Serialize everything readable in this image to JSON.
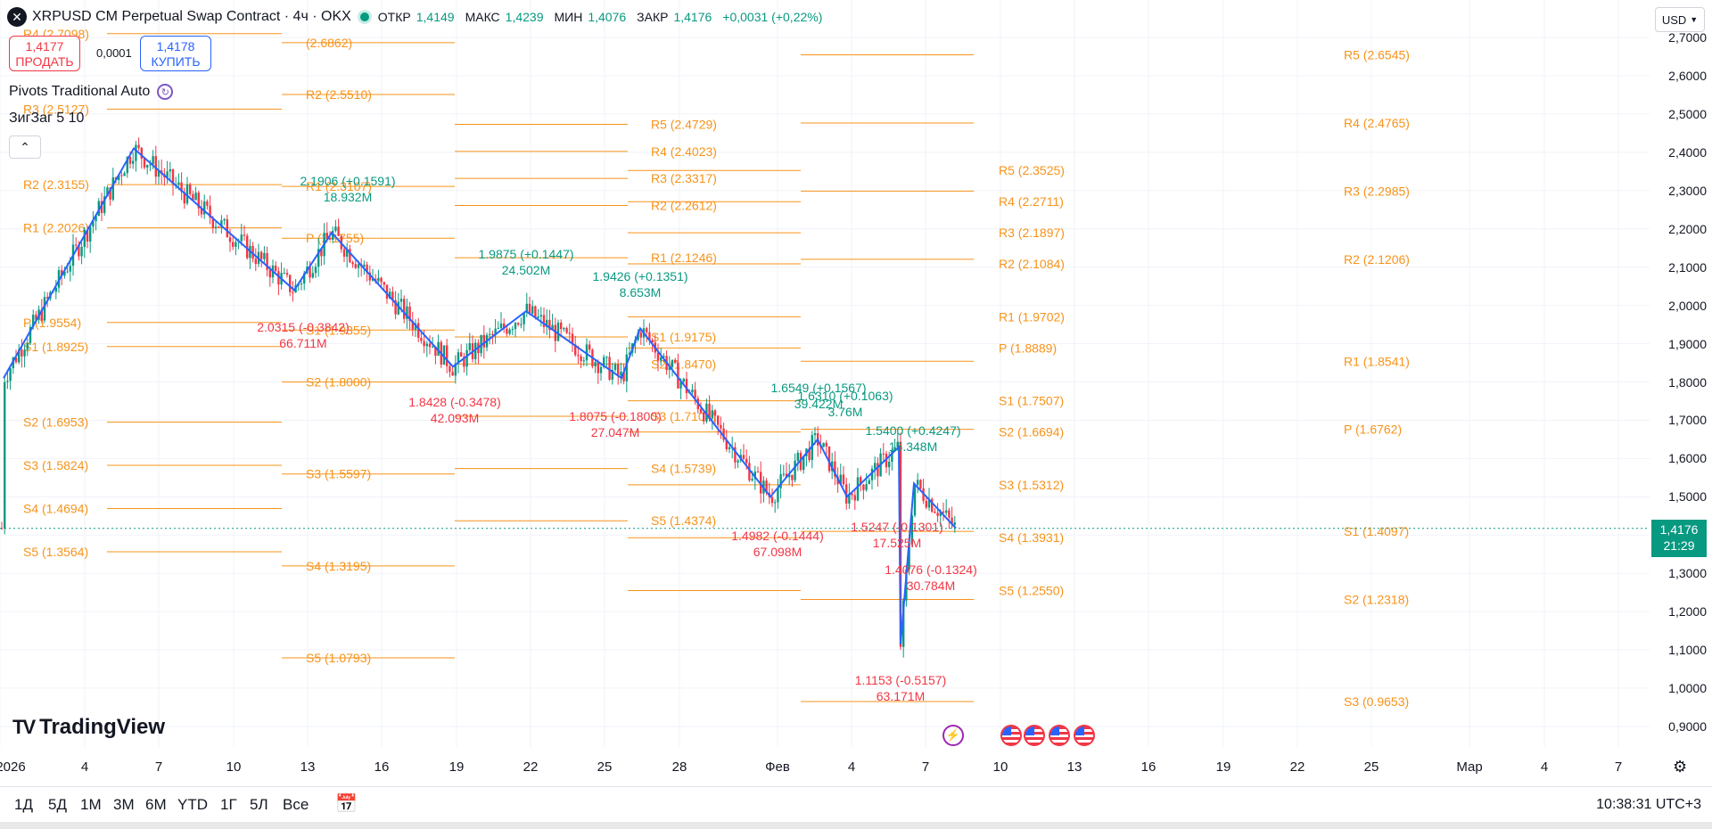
{
  "header": {
    "symbol_title": "XRPUSD CM Perpetual Swap Contract · 4ч · OKX",
    "open_label": "ОТКР",
    "open_value": "1,4149",
    "high_label": "МАКС",
    "high_value": "1,4239",
    "low_label": "МИН",
    "low_value": "1,4076",
    "close_label": "ЗАКР",
    "close_value": "1,4176",
    "change": "+0,0031 (+0,22%)"
  },
  "trade": {
    "sell_price": "1,4177",
    "sell_label": "ПРОДАТЬ",
    "spread": "0,0001",
    "buy_price": "1,4178",
    "buy_label": "КУПИТЬ"
  },
  "indicators": {
    "pivots": "Pivots Traditional Auto",
    "zigzag": "ЗигЗаг 5 10"
  },
  "price_scale": {
    "currency": "USD",
    "ticks": [
      "2,7000",
      "2,6000",
      "2,5000",
      "2,4000",
      "2,3000",
      "2,2000",
      "2,1000",
      "2,0000",
      "1,9000",
      "1,8000",
      "1,7000",
      "1,6000",
      "1,5000",
      "1,3000",
      "1,2000",
      "1,1000",
      "1,0000",
      "0,9000"
    ],
    "last_price": "1,4176",
    "countdown": "21:29"
  },
  "time_axis": {
    "ticks": [
      "2026",
      "4",
      "7",
      "10",
      "13",
      "16",
      "19",
      "22",
      "25",
      "28",
      "Фев",
      "4",
      "7",
      "10",
      "13",
      "16",
      "19",
      "22",
      "25",
      "Мар",
      "4",
      "7"
    ]
  },
  "ranges": [
    "1Д",
    "5Д",
    "1М",
    "3М",
    "6М",
    "YTD",
    "1Г",
    "5Л",
    "Все"
  ],
  "clock": "10:38:31 UTC+3",
  "logo": "TradingView",
  "colors": {
    "up": "#089981",
    "down": "#f23645",
    "pivot": "#f7931a",
    "zigzag": "#2962ff"
  },
  "chart_data": {
    "type": "candlestick",
    "title": "XRPUSD CM Perpetual Swap Contract · 4ч · OKX",
    "y_range": [
      0.86,
      2.74
    ],
    "x_ticks": [
      "2026",
      "4",
      "7",
      "10",
      "13",
      "16",
      "19",
      "22",
      "25",
      "28",
      "Фев",
      "4",
      "7",
      "10",
      "13",
      "16",
      "19",
      "22",
      "25",
      "Мар",
      "4",
      "7"
    ],
    "pivot_periods": [
      {
        "levels": [
          {
            "label": "R4 (2.7098)",
            "y": 2.7098
          },
          {
            "label": "R3 (2.5127)",
            "y": 2.5127
          },
          {
            "label": "R2 (2.3155)",
            "y": 2.3155
          },
          {
            "label": "R1 (2.2026)",
            "y": 2.2026
          },
          {
            "label": "P (1.9554)",
            "y": 1.9554
          },
          {
            "label": "S1 (1.8925)",
            "y": 1.8925
          },
          {
            "label": "S2 (1.6953)",
            "y": 1.6953
          },
          {
            "label": "S3 (1.5824)",
            "y": 1.5824
          },
          {
            "label": "S4 (1.4694)",
            "y": 1.4694
          },
          {
            "label": "S5 (1.3564)",
            "y": 1.3564
          }
        ]
      },
      {
        "levels": [
          {
            "label": "(2.6862)",
            "y": 2.6862
          },
          {
            "label": "R2 (2.5510)",
            "y": 2.551
          },
          {
            "label": "R1 (2.3107)",
            "y": 2.3107
          },
          {
            "label": "P (2.1755)",
            "y": 2.1755
          },
          {
            "label": "S1 (1.9355)",
            "y": 1.9355
          },
          {
            "label": "S2 (1.8000)",
            "y": 1.8
          },
          {
            "label": "S3 (1.5597)",
            "y": 1.5597
          },
          {
            "label": "S4 (1.3195)",
            "y": 1.3195
          },
          {
            "label": "S5 (1.0793)",
            "y": 1.0793
          }
        ]
      },
      {
        "levels": [
          {
            "label": "R5 (2.4729)",
            "y": 2.4729
          },
          {
            "label": "R4 (2.4023)",
            "y": 2.4023
          },
          {
            "label": "R3 (2.3317)",
            "y": 2.3317
          },
          {
            "label": "R2 (2.2612)",
            "y": 2.2612
          },
          {
            "label": "R1 (2.1246)",
            "y": 2.1246
          },
          {
            "label": "S1 (1.9175)",
            "y": 1.9175
          },
          {
            "label": "S2 (1.8470)",
            "y": 1.847
          },
          {
            "label": "S3 (1.7104)",
            "y": 1.7104
          },
          {
            "label": "S4 (1.5739)",
            "y": 1.5739
          },
          {
            "label": "S5 (1.4374)",
            "y": 1.4374
          }
        ]
      },
      {
        "levels": [
          {
            "label": "R5 (2.3525)",
            "y": 2.3525
          },
          {
            "label": "R4 (2.2711)",
            "y": 2.2711
          },
          {
            "label": "R3 (2.1897)",
            "y": 2.1897
          },
          {
            "label": "R2 (2.1084)",
            "y": 2.1084
          },
          {
            "label": "R1 (1.9702)",
            "y": 1.9702
          },
          {
            "label": "P (1.8889)",
            "y": 1.8889
          },
          {
            "label": "S1 (1.7507)",
            "y": 1.7507
          },
          {
            "label": "S2 (1.6694)",
            "y": 1.6694
          },
          {
            "label": "S3 (1.5312)",
            "y": 1.5312
          },
          {
            "label": "S4 (1.3931)",
            "y": 1.3931
          },
          {
            "label": "S5 (1.2550)",
            "y": 1.255
          }
        ]
      },
      {
        "levels": [
          {
            "label": "R5 (2.6545)",
            "y": 2.6545
          },
          {
            "label": "R4 (2.4765)",
            "y": 2.4765
          },
          {
            "label": "R3 (2.2985)",
            "y": 2.2985
          },
          {
            "label": "R2 (2.1206)",
            "y": 2.1206
          },
          {
            "label": "R1 (1.8541)",
            "y": 1.8541
          },
          {
            "label": "P (1.6762)",
            "y": 1.6762
          },
          {
            "label": "S1 (1.4097)",
            "y": 1.4097
          },
          {
            "label": "S2 (1.2318)",
            "y": 1.2318
          },
          {
            "label": "S3 (0.9653)",
            "y": 0.9653
          }
        ]
      }
    ],
    "zigzag": [
      1.81,
      2.41,
      2.04,
      2.19,
      1.84,
      1.985,
      1.81,
      1.94,
      1.5,
      1.65,
      1.5,
      1.63,
      1.115,
      1.535,
      1.418
    ],
    "zigzag_labels": [
      {
        "text": "2.1906 (+0.1591)",
        "volume": "18.932M",
        "dir": "up"
      },
      {
        "text": "1.9875 (+0.1447)",
        "volume": "24.502M",
        "dir": "up"
      },
      {
        "text": "1.9426 (+0.1351)",
        "volume": "8.653M",
        "dir": "up"
      },
      {
        "text": "2.0315 (-0.3842)",
        "volume": "66.711M",
        "dir": "down"
      },
      {
        "text": "1.8428 (-0.3478)",
        "volume": "42.093M",
        "dir": "down"
      },
      {
        "text": "1.8075 (-0.1800)",
        "volume": "27.047M",
        "dir": "down"
      },
      {
        "text": "1.6549 (+0.1567)",
        "volume": "39.422M",
        "dir": "up"
      },
      {
        "text": "1.6310 (+0.1063)",
        "volume": "3.76M",
        "dir": "up"
      },
      {
        "text": "1.5400 (+0.4247)",
        "volume": "15.348M",
        "dir": "up"
      },
      {
        "text": "1.4982 (-0.1444)",
        "volume": "67.098M",
        "dir": "down"
      },
      {
        "text": "1.5247 (-0.1301)",
        "volume": "17.525M",
        "dir": "down"
      },
      {
        "text": "1.4076 (-0.1324)",
        "volume": "30.784M",
        "dir": "down"
      },
      {
        "text": "1.1153 (-0.5157)",
        "volume": "63.171M",
        "dir": "down"
      }
    ],
    "last_price": 1.4176
  }
}
